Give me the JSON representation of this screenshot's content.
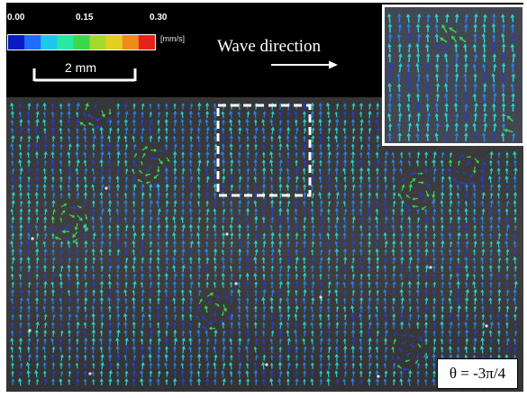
{
  "colorbar": {
    "ticks": [
      "0.00",
      "0.15",
      "0.30"
    ],
    "unit": "[mm/s]",
    "colors": [
      "#0a1ac8",
      "#1f6cff",
      "#1ec7ee",
      "#27e8a4",
      "#3bd94a",
      "#a6d92e",
      "#e3cf22",
      "#f08a1a",
      "#e8221a"
    ]
  },
  "scale_bar": {
    "label": "2 mm"
  },
  "wave": {
    "label": "Wave direction"
  },
  "theta": {
    "label": "θ = -3π/4"
  },
  "field": {
    "dominant_direction": "up",
    "palette": {
      "slow": "#2a3ad0",
      "mid": "#2a7ee8",
      "fast": "#27cfd0",
      "vortex": "#36d25a"
    }
  }
}
